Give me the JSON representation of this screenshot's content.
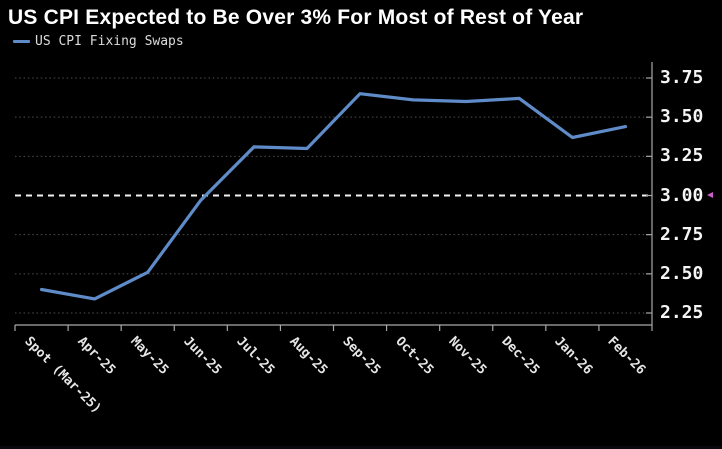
{
  "title": "US CPI Expected to Be Over 3% For Most of Rest of Year",
  "legend": {
    "label": "US CPI Fixing Swaps",
    "swatch_color": "#5f8cc8"
  },
  "chart_data": {
    "type": "line",
    "categories": [
      "Spot (Mar-25)",
      "Apr-25",
      "May-25",
      "Jun-25",
      "Jul-25",
      "Aug-25",
      "Sep-25",
      "Oct-25",
      "Nov-25",
      "Dec-25",
      "Jan-26",
      "Feb-26"
    ],
    "series": [
      {
        "name": "US CPI Fixing Swaps",
        "color": "#5f8cc8",
        "values": [
          2.4,
          2.34,
          2.51,
          2.97,
          3.31,
          3.3,
          3.65,
          3.61,
          3.6,
          3.62,
          3.37,
          3.44
        ]
      }
    ],
    "title": "US CPI Expected to Be Over 3% For Most of Rest of Year",
    "xlabel": "",
    "ylabel": "",
    "ylim": [
      2.25,
      3.75
    ],
    "ytick_labels": [
      "3.75",
      "3.50",
      "3.25",
      "3.00",
      "2.75",
      "2.50",
      "2.25"
    ],
    "highlight_level": 3.0,
    "level_marker": {
      "at": "3.00",
      "color": "#c95fc9"
    },
    "grid": "horizontal dotted",
    "legend_position": "top-left",
    "yaxis_side": "right",
    "xlabel_rotation_deg": 45
  },
  "colors": {
    "background": "#000000",
    "title_text": "#ffffff",
    "line": "#5f8cc8",
    "gridline": "#4f4f4f",
    "highlight_line": "#f2f2f2",
    "axis": "#a8a8a8",
    "ytick_text": "#f5f5f5",
    "xtick_text": "#e6e6e6"
  }
}
